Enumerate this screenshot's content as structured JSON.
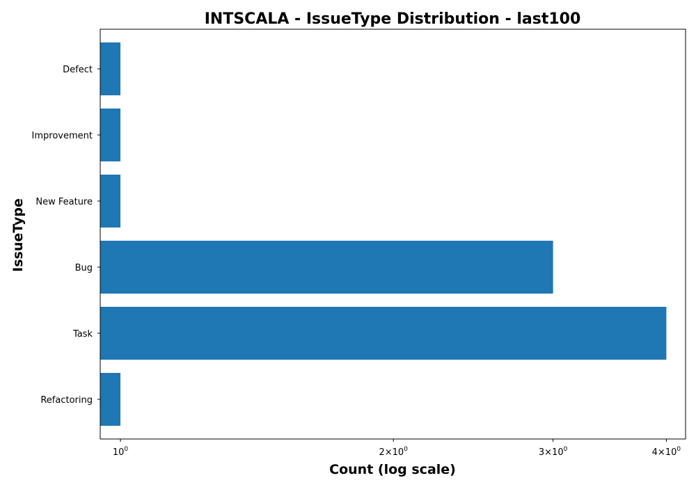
{
  "chart_data": {
    "type": "bar",
    "orientation": "horizontal",
    "title": "INTSCALA - IssueType Distribution - last100",
    "xlabel": "Count (log scale)",
    "ylabel": "IssueType",
    "x_scale": "log",
    "xlim": [
      0.95,
      4.2
    ],
    "categories": [
      "Refactoring",
      "Task",
      "Bug",
      "New Feature",
      "Improvement",
      "Defect"
    ],
    "values": [
      1,
      4,
      3,
      1,
      1,
      1
    ],
    "x_ticks": [
      {
        "value": 1,
        "base": "10",
        "exp": "0"
      },
      {
        "value": 2,
        "base": "2×10",
        "exp": "0"
      },
      {
        "value": 3,
        "base": "3×10",
        "exp": "0"
      },
      {
        "value": 4,
        "base": "4×10",
        "exp": "0"
      }
    ],
    "bar_color": "#1f77b4",
    "grid": false,
    "legend": "none"
  }
}
